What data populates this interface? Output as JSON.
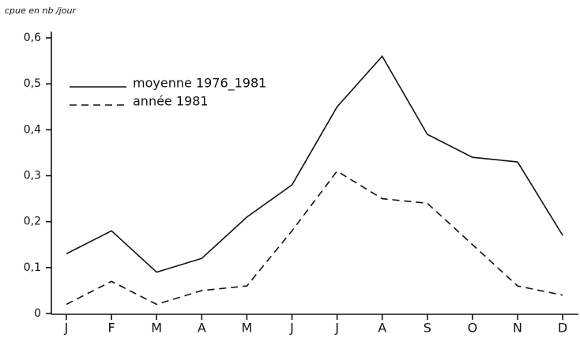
{
  "chart_data": {
    "type": "line",
    "ylabel": "cpue en nb /jour",
    "categories": [
      "J",
      "F",
      "M",
      "A",
      "M",
      "J",
      "J",
      "A",
      "S",
      "O",
      "N",
      "D"
    ],
    "series": [
      {
        "name": "moyenne 1976_1981",
        "color": "#111111",
        "style": "solid",
        "values": [
          0.13,
          0.18,
          0.09,
          0.12,
          0.21,
          0.28,
          0.45,
          0.56,
          0.39,
          0.34,
          0.33,
          0.17
        ]
      },
      {
        "name": "année 1981",
        "color": "#111111",
        "style": "dashed",
        "values": [
          0.02,
          0.07,
          0.02,
          0.05,
          0.06,
          0.18,
          0.31,
          0.25,
          0.24,
          0.15,
          0.06,
          0.04
        ]
      }
    ],
    "ylim": [
      0,
      0.6
    ],
    "yticks": [
      0,
      {
        "value": 0.1,
        "label": "0,1"
      },
      {
        "value": 0.2,
        "label": "0,2"
      },
      {
        "value": 0.3,
        "label": "0,3"
      },
      {
        "value": 0.4,
        "label": "0,4"
      },
      {
        "value": 0.5,
        "label": "0,5"
      },
      {
        "value": 0.6,
        "label": "0,6"
      }
    ],
    "grid": false,
    "legend": "upper left"
  }
}
